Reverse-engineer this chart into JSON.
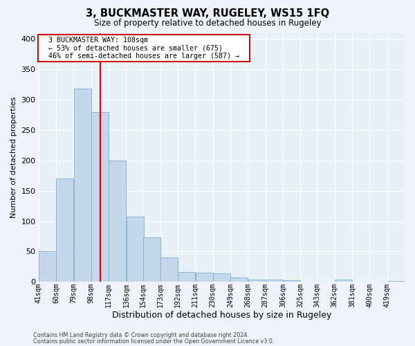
{
  "title": "3, BUCKMASTER WAY, RUGELEY, WS15 1FQ",
  "subtitle": "Size of property relative to detached houses in Rugeley",
  "xlabel": "Distribution of detached houses by size in Rugeley",
  "ylabel": "Number of detached properties",
  "footer_line1": "Contains HM Land Registry data © Crown copyright and database right 2024.",
  "footer_line2": "Contains public sector information licensed under the Open Government Licence v3.0.",
  "annotation_line1": "3 BUCKMASTER WAY: 108sqm",
  "annotation_line2": "← 53% of detached houses are smaller (675)",
  "annotation_line3": "46% of semi-detached houses are larger (587) →",
  "property_size": 108,
  "bar_labels": [
    "41sqm",
    "60sqm",
    "79sqm",
    "98sqm",
    "117sqm",
    "136sqm",
    "154sqm",
    "173sqm",
    "192sqm",
    "211sqm",
    "230sqm",
    "249sqm",
    "268sqm",
    "287sqm",
    "306sqm",
    "325sqm",
    "343sqm",
    "362sqm",
    "381sqm",
    "400sqm",
    "419sqm"
  ],
  "bar_values": [
    50,
    170,
    318,
    280,
    200,
    108,
    73,
    40,
    16,
    15,
    14,
    7,
    4,
    4,
    3,
    0,
    0,
    4,
    0,
    0,
    2
  ],
  "bar_left_edges": [
    41,
    60,
    79,
    98,
    117,
    136,
    154,
    173,
    192,
    211,
    230,
    249,
    268,
    287,
    306,
    325,
    343,
    362,
    381,
    400,
    419
  ],
  "bin_width": 19,
  "bar_color": "#c5d8eb",
  "bar_edge_color": "#7eaecf",
  "redline_x": 108,
  "annotation_box_color": "#ffffff",
  "annotation_box_edge": "#cc0000",
  "background_color": "#eef3fa",
  "plot_bg_color": "#e8f0f8",
  "grid_color": "#ffffff",
  "ylim": [
    0,
    410
  ],
  "yticks": [
    0,
    50,
    100,
    150,
    200,
    250,
    300,
    350,
    400
  ]
}
